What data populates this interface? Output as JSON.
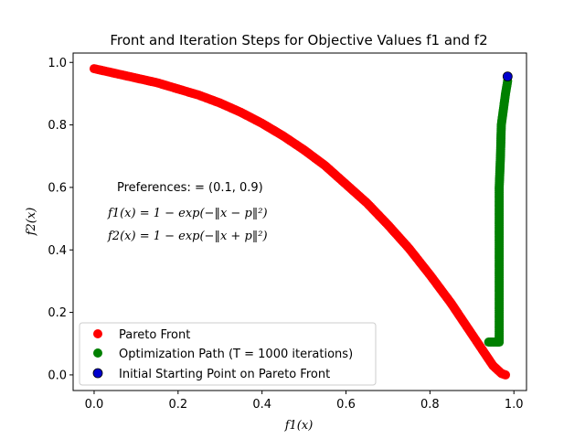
{
  "chart_data": {
    "type": "scatter",
    "title": "Front and Iteration Steps for Objective Values f1 and f2",
    "xlabel": "f1(x)",
    "ylabel": "f2(x)",
    "xlim": [
      -0.05,
      1.03
    ],
    "ylim": [
      -0.05,
      1.03
    ],
    "x_ticks": [
      "0.0",
      "0.2",
      "0.4",
      "0.6",
      "0.8",
      "1.0"
    ],
    "y_ticks": [
      "0.0",
      "0.2",
      "0.4",
      "0.6",
      "0.8",
      "1.0"
    ],
    "grid": false,
    "legend_position": "lower-left",
    "annotations": [
      "Preferences: = (0.1, 0.9)",
      "f1(x) = 1 − exp(−‖x − p‖²)",
      "f2(x) = 1 − exp(−‖x + p‖²)"
    ],
    "series": [
      {
        "name": "Pareto Front",
        "color": "#ff0000",
        "x": [
          0.0,
          0.05,
          0.1,
          0.15,
          0.2,
          0.25,
          0.3,
          0.35,
          0.4,
          0.45,
          0.5,
          0.55,
          0.6,
          0.65,
          0.7,
          0.75,
          0.8,
          0.85,
          0.9,
          0.93,
          0.95,
          0.97,
          0.98
        ],
        "y": [
          0.98,
          0.965,
          0.95,
          0.935,
          0.915,
          0.895,
          0.87,
          0.84,
          0.805,
          0.765,
          0.72,
          0.67,
          0.61,
          0.55,
          0.48,
          0.405,
          0.32,
          0.23,
          0.13,
          0.07,
          0.03,
          0.005,
          0.0
        ]
      },
      {
        "name": "Optimization Path (T = 1000 iterations)",
        "color": "#008000",
        "x": [
          0.94,
          0.95,
          0.96,
          0.965,
          0.965,
          0.965,
          0.965,
          0.965,
          0.965,
          0.968,
          0.97,
          0.975,
          0.98,
          0.985
        ],
        "y": [
          0.105,
          0.105,
          0.105,
          0.105,
          0.2,
          0.3,
          0.4,
          0.5,
          0.6,
          0.7,
          0.8,
          0.85,
          0.9,
          0.94
        ]
      },
      {
        "name": "Initial Starting Point on Pareto Front",
        "color": "#0000cd",
        "x": [
          0.985
        ],
        "y": [
          0.955
        ]
      }
    ]
  }
}
